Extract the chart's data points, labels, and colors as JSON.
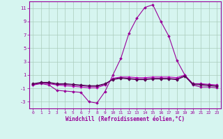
{
  "xlabel": "Windchill (Refroidissement éolien,°C)",
  "background_color": "#d6f5f0",
  "grid_color": "#aaccbb",
  "line_color1": "#990099",
  "line_color2": "#bb00bb",
  "line_color3": "#770077",
  "line_color4": "#550055",
  "x_hours": [
    0,
    1,
    2,
    3,
    4,
    5,
    6,
    7,
    8,
    9,
    10,
    11,
    12,
    13,
    14,
    15,
    16,
    17,
    18,
    19,
    20,
    21,
    22,
    23
  ],
  "series1": [
    -0.5,
    -0.3,
    -0.5,
    -1.3,
    -1.4,
    -1.5,
    -1.6,
    -3.0,
    -3.2,
    -1.5,
    1.0,
    3.5,
    7.2,
    9.5,
    11.1,
    11.5,
    9.0,
    6.8,
    3.2,
    1.0,
    -0.5,
    -0.8,
    -0.8,
    -0.9
  ],
  "series2": [
    -0.5,
    -0.2,
    -0.3,
    -0.5,
    -0.6,
    -0.7,
    -0.8,
    -0.9,
    -0.9,
    -0.5,
    0.5,
    0.7,
    0.7,
    0.6,
    0.6,
    0.7,
    0.7,
    0.7,
    0.6,
    1.0,
    -0.3,
    -0.3,
    -0.4,
    -0.5
  ],
  "series3": [
    -0.4,
    -0.2,
    -0.2,
    -0.4,
    -0.4,
    -0.5,
    -0.6,
    -0.7,
    -0.7,
    -0.4,
    0.4,
    0.6,
    0.5,
    0.4,
    0.4,
    0.5,
    0.5,
    0.5,
    0.4,
    0.9,
    -0.3,
    -0.4,
    -0.5,
    -0.6
  ],
  "series4": [
    -0.3,
    -0.1,
    -0.1,
    -0.3,
    -0.3,
    -0.4,
    -0.5,
    -0.6,
    -0.6,
    -0.3,
    0.3,
    0.5,
    0.4,
    0.3,
    0.3,
    0.4,
    0.4,
    0.4,
    0.3,
    0.8,
    -0.4,
    -0.5,
    -0.6,
    -0.7
  ],
  "ylim": [
    -4,
    12
  ],
  "yticks": [
    -3,
    -1,
    1,
    3,
    5,
    7,
    9,
    11
  ],
  "xlim": [
    -0.5,
    23.5
  ],
  "xticks": [
    0,
    1,
    2,
    3,
    4,
    5,
    6,
    7,
    8,
    9,
    10,
    11,
    12,
    13,
    14,
    15,
    16,
    17,
    18,
    19,
    20,
    21,
    22,
    23
  ],
  "marker": "D",
  "markersize": 1.8,
  "linewidth": 0.8
}
